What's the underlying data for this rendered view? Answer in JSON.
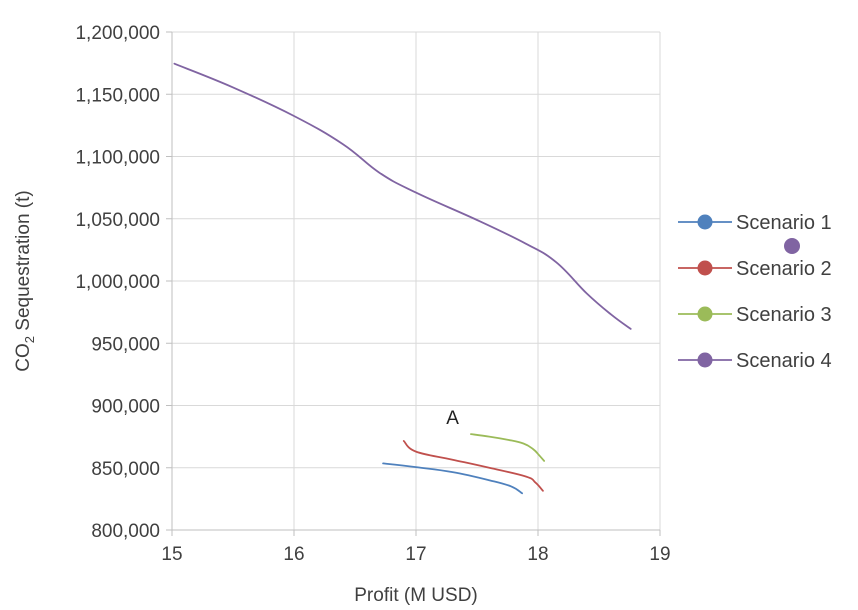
{
  "chart_data": {
    "type": "line",
    "title": "",
    "xlabel": "Profit (M USD)",
    "ylabel_prefix": "CO",
    "ylabel_sub": "2",
    "ylabel_suffix": " Sequestration (t)",
    "xlim": [
      15,
      19
    ],
    "ylim": [
      800000,
      1200000
    ],
    "xticks": [
      15,
      16,
      17,
      18,
      19
    ],
    "xtick_labels": [
      "15",
      "16",
      "17",
      "18",
      "19"
    ],
    "yticks": [
      800000,
      850000,
      900000,
      950000,
      1000000,
      1050000,
      1100000,
      1150000,
      1200000
    ],
    "ytick_labels": [
      "800,000",
      "850,000",
      "900,000",
      "950,000",
      "1,000,000",
      "1,050,000",
      "1,100,000",
      "1,150,000",
      "1,200,000"
    ],
    "grid": true,
    "legend_position": "right",
    "series": [
      {
        "name": "Scenario 1",
        "color": "#4F81BD",
        "points": [
          [
            16.73,
            853500
          ],
          [
            17.0,
            850500
          ],
          [
            17.3,
            846500
          ],
          [
            17.6,
            840000
          ],
          [
            17.78,
            835000
          ],
          [
            17.87,
            829500
          ]
        ]
      },
      {
        "name": "Scenario 2",
        "color": "#C0504D",
        "points": [
          [
            16.9,
            871500
          ],
          [
            17.0,
            863000
          ],
          [
            17.3,
            856500
          ],
          [
            17.6,
            850000
          ],
          [
            17.9,
            843000
          ],
          [
            17.98,
            838000
          ],
          [
            18.04,
            831500
          ]
        ]
      },
      {
        "name": "Scenario 3",
        "color": "#9BBB59",
        "points": [
          [
            17.45,
            877000
          ],
          [
            17.6,
            875000
          ],
          [
            17.75,
            872500
          ],
          [
            17.88,
            869500
          ],
          [
            17.96,
            865000
          ],
          [
            18.01,
            860000
          ],
          [
            18.05,
            855500
          ]
        ]
      },
      {
        "name": "Scenario 4",
        "color": "#8064A2",
        "points": [
          [
            15.02,
            1174500
          ],
          [
            15.5,
            1155500
          ],
          [
            16.0,
            1132500
          ],
          [
            16.4,
            1110000
          ],
          [
            16.7,
            1087000
          ],
          [
            17.0,
            1071000
          ],
          [
            17.5,
            1049000
          ],
          [
            17.9,
            1030000
          ],
          [
            18.15,
            1015000
          ],
          [
            18.4,
            990000
          ],
          [
            18.6,
            973000
          ],
          [
            18.76,
            961500
          ]
        ]
      }
    ],
    "annotations": [
      {
        "text": "A",
        "x": 17.3,
        "y": 885000
      }
    ]
  }
}
